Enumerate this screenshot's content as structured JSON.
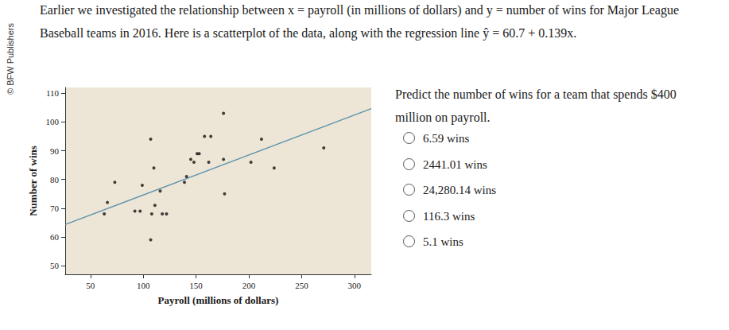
{
  "chart_data": {
    "type": "scatter",
    "x_label": "Payroll (millions of dollars)",
    "y_label": "Number of wins",
    "x": [
      176,
      107,
      158,
      164,
      212,
      271,
      151,
      153,
      145,
      148,
      162,
      176,
      202,
      224,
      110,
      139,
      141,
      73,
      99,
      116,
      177,
      66,
      111,
      63,
      92,
      97,
      108,
      118,
      122,
      107
    ],
    "values": [
      103,
      94,
      95,
      95,
      94,
      91,
      89,
      89,
      87,
      86,
      86,
      87,
      86,
      84,
      84,
      79,
      81,
      79,
      78,
      76,
      75,
      72,
      71,
      68,
      69,
      69,
      68,
      68,
      68,
      59
    ],
    "color": "#111111",
    "regression": {
      "intercept": 60.7,
      "slope": 0.139,
      "color": "#5f93ad"
    },
    "xlim": [
      26,
      316
    ],
    "ylim": [
      47,
      112
    ],
    "xticks": [
      50,
      100,
      150,
      200,
      250,
      300
    ],
    "yticks": [
      50,
      60,
      70,
      80,
      90,
      100,
      110
    ],
    "grid": false
  },
  "credit": "© BFW Publishers",
  "intro": [
    "Earlier we investigated the relationship between x = payroll (in millions of dollars) and y = number of wins for Major League",
    "Baseball teams in 2016. Here is a scatterplot of the data, along with the regression line ŷ = 60.7 + 0.139x."
  ],
  "question": [
    "Predict the number of wins for a team that spends $400",
    "million on payroll."
  ],
  "choices": [
    "6.59 wins",
    "2441.01 wins",
    "24,280.14 wins",
    "116.3 wins",
    "5.1 wins"
  ]
}
